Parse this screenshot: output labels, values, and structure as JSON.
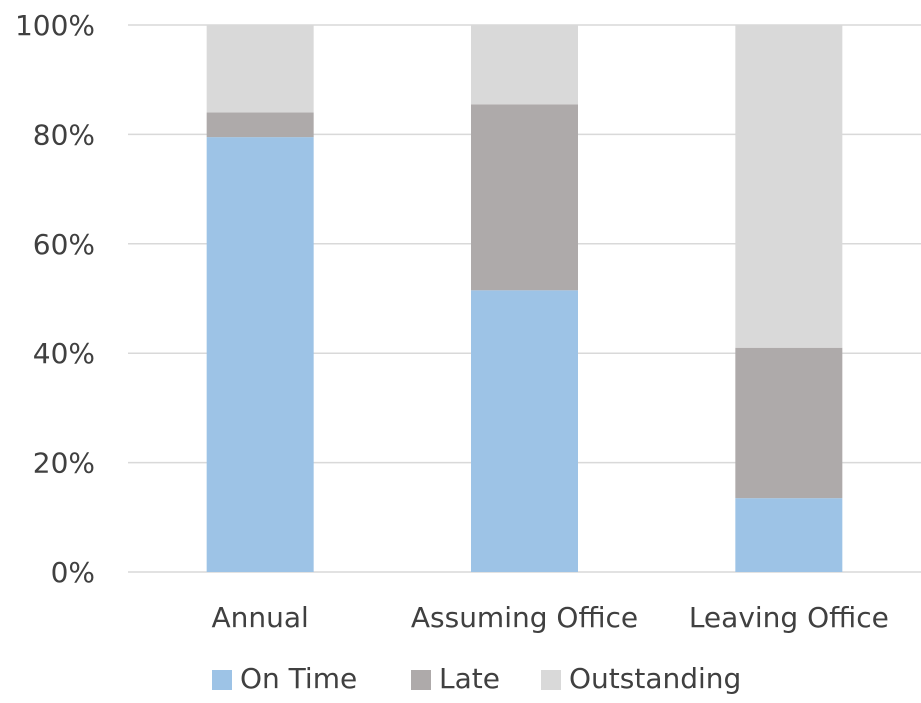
{
  "chart_data": {
    "type": "bar",
    "stacked": true,
    "categories": [
      "Annual",
      "Assuming Office",
      "Leaving Office"
    ],
    "series": [
      {
        "name": "On Time",
        "color": "#9dc3e6",
        "values": [
          79.5,
          51.5,
          13.5
        ]
      },
      {
        "name": "Late",
        "color": "#aeaaaa",
        "values": [
          4.5,
          34,
          27.5
        ]
      },
      {
        "name": "Outstanding",
        "color": "#d9d9d9",
        "values": [
          16,
          14.5,
          59
        ]
      }
    ],
    "ylim": [
      0,
      100
    ],
    "yticks": [
      "0%",
      "20%",
      "40%",
      "60%",
      "80%",
      "100%"
    ],
    "grid": true,
    "legend_position": "bottom",
    "gridline_color": "#d9d9d9",
    "text_color": "#404040"
  }
}
